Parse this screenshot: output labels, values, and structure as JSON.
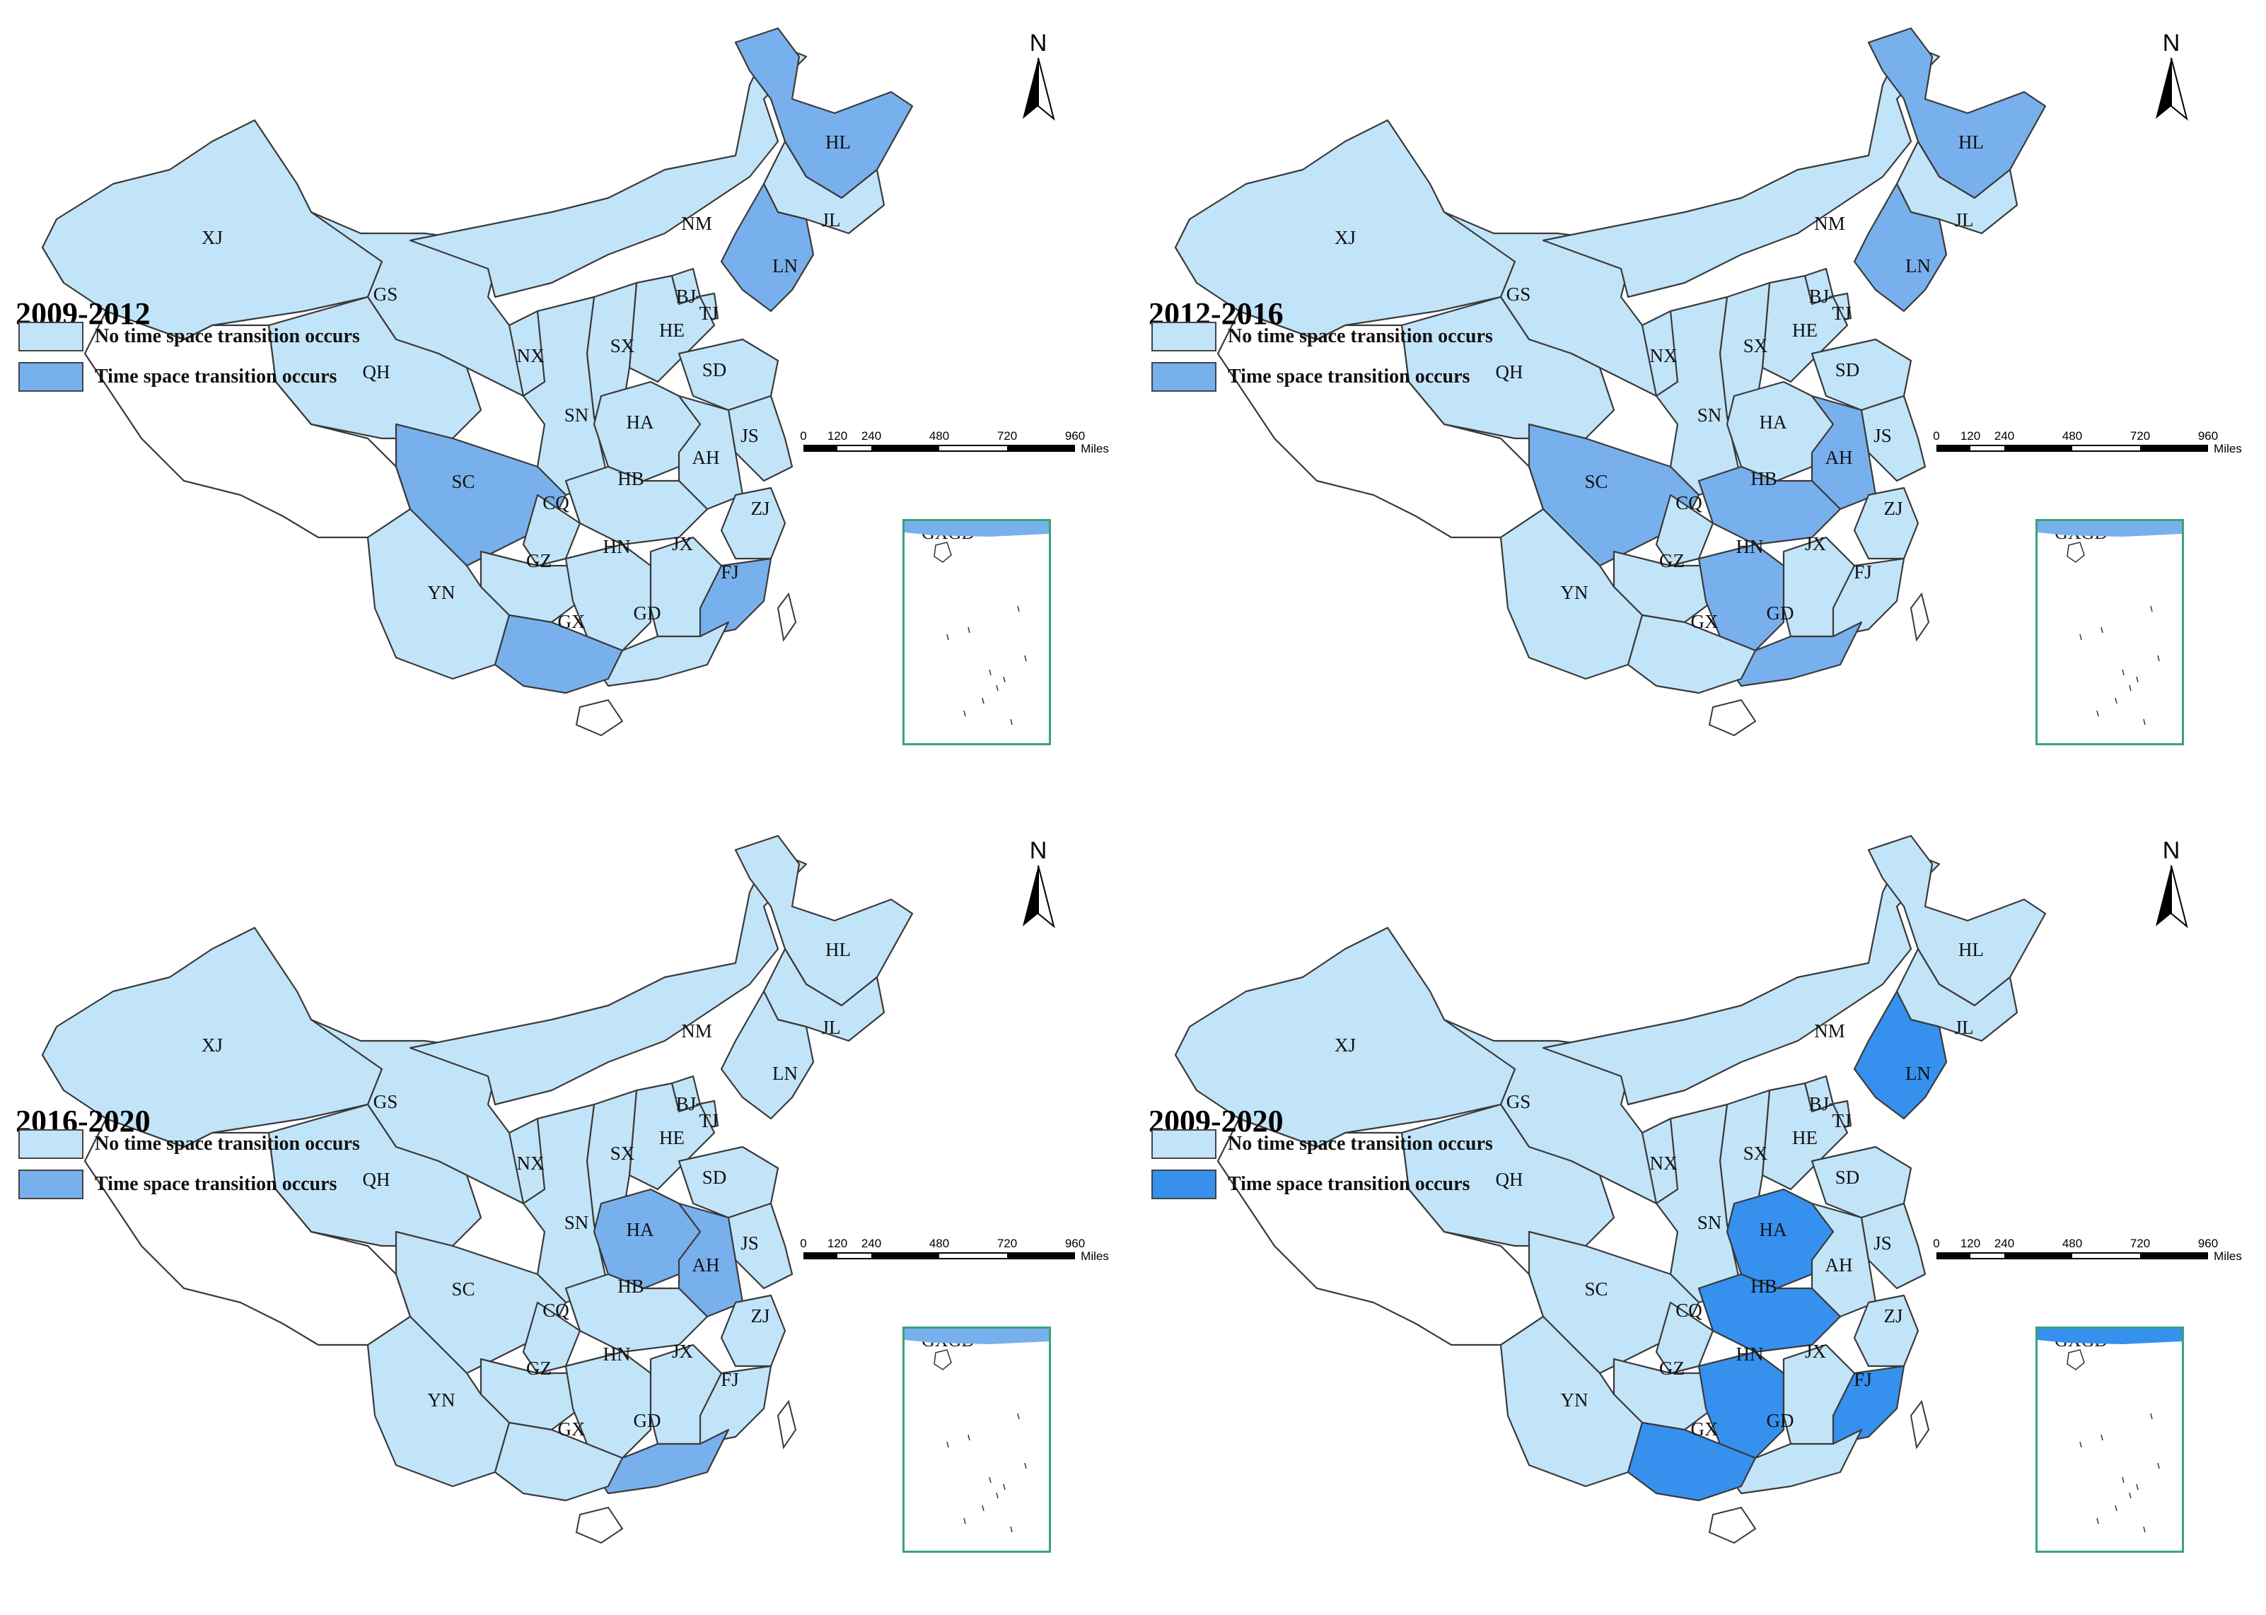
{
  "colors": {
    "no_transition": "#c2e4f9",
    "transition_mid": "#78b0ed",
    "transition_strong": "#3590ee",
    "inset_border": "#3aa37a"
  },
  "compass": {
    "letter": "N"
  },
  "scale": {
    "ticks": [
      "0",
      "120",
      "240",
      "480",
      "720",
      "960"
    ],
    "unit": "Miles"
  },
  "inset": {
    "label": "GXGD"
  },
  "panels": [
    {
      "period": "2009-2012",
      "legend": [
        "No time space transition occurs",
        "Time space transition occurs"
      ],
      "transition_color": "#78b0ed",
      "highlighted": [
        "HL",
        "LN",
        "SC",
        "GX",
        "FJ"
      ]
    },
    {
      "period": "2012-2016",
      "legend": [
        "No time space transition occurs",
        "Time space transition occurs"
      ],
      "transition_color": "#78b0ed",
      "highlighted": [
        "HL",
        "LN",
        "SC",
        "HB",
        "HN",
        "AH",
        "GD"
      ]
    },
    {
      "period": "2016-2020",
      "legend": [
        "No time space transition occurs",
        "Time space transition occurs"
      ],
      "transition_color": "#78b0ed",
      "highlighted": [
        "HA",
        "AH",
        "GD"
      ]
    },
    {
      "period": "2009-2020",
      "legend": [
        "No time space transition occurs",
        "Time space transition occurs"
      ],
      "transition_color": "#3590ee",
      "highlighted": [
        "LN",
        "HA",
        "HB",
        "HN",
        "GX",
        "FJ"
      ]
    }
  ],
  "provinces": [
    "XJ",
    "GS",
    "QH",
    "NM",
    "HL",
    "JL",
    "LN",
    "BJ",
    "TJ",
    "HE",
    "SX",
    "SD",
    "NX",
    "SN",
    "HA",
    "JS",
    "AH",
    "HB",
    "SC",
    "CQ",
    "GZ",
    "YN",
    "HN",
    "JX",
    "ZJ",
    "FJ",
    "GD",
    "GX"
  ]
}
